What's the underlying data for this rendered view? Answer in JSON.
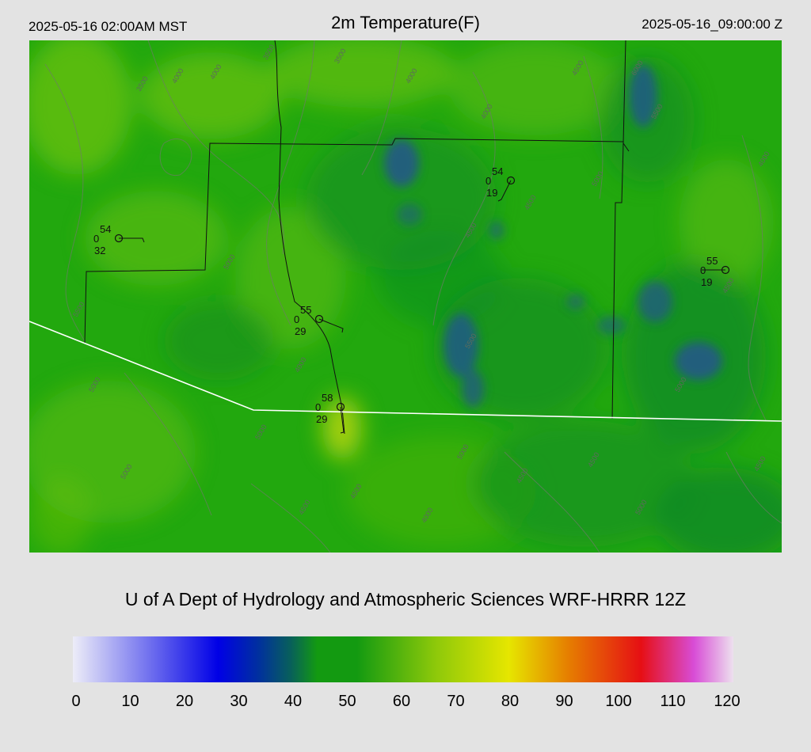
{
  "header": {
    "valid_local": "2025-05-16 02:00AM MST",
    "title": "2m Temperature(F)",
    "valid_z": "2025-05-16_09:00:00 Z"
  },
  "footer": {
    "credit": "U of A Dept of Hydrology and Atmospheric Sciences WRF-HRRR 12Z"
  },
  "colorbar": {
    "ticks": [
      "0",
      "10",
      "20",
      "30",
      "40",
      "50",
      "60",
      "70",
      "80",
      "90",
      "100",
      "110",
      "120"
    ],
    "colors": {
      "pale": "#ededf8",
      "blue": "#0000e6",
      "navy": "#002fa0",
      "teal": "#08605a",
      "green": "#139a11",
      "lime": "#8ec90a",
      "yellow": "#e6e600",
      "orange": "#e67e00",
      "red": "#e60f14",
      "magenta": "#d84cd6",
      "pink": "#ede0ee"
    }
  },
  "map": {
    "colors": {
      "base": "#22a80e",
      "light": "#62be0c",
      "dark": "#0d8a26",
      "cold": "#225a86",
      "warm": "#b0d40c",
      "border": "#ffffff",
      "county": "#111111",
      "contour": "#6e7a6a"
    },
    "contour_labels": [
      "4000",
      "4000",
      "3500",
      "3500",
      "3500",
      "4000",
      "4000",
      "4500",
      "6000",
      "5500",
      "4500",
      "5000",
      "4500",
      "5000",
      "5500",
      "5500",
      "5000",
      "4000",
      "5000",
      "5000",
      "4500",
      "4500",
      "4000",
      "5000",
      "4500",
      "4500",
      "5000",
      "5000",
      "4500",
      "4500",
      "4000"
    ],
    "stations": [
      {
        "temp": "54",
        "dew": "32",
        "cloud": "0"
      },
      {
        "temp": "55",
        "dew": "29",
        "cloud": "0"
      },
      {
        "temp": "58",
        "dew": "29",
        "cloud": "0"
      },
      {
        "temp": "54",
        "dew": "19",
        "cloud": "0"
      },
      {
        "temp": "55",
        "dew": "19",
        "cloud": "0"
      }
    ]
  }
}
